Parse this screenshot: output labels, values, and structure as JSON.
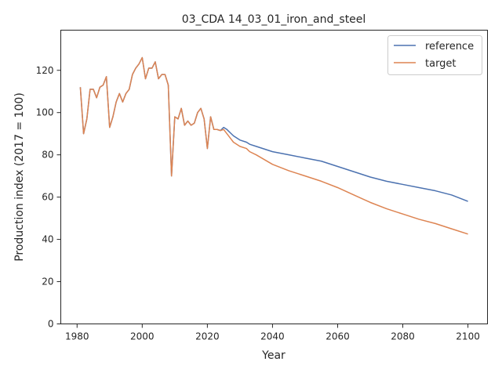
{
  "colors": {
    "reference": "#4c72b0",
    "target": "#dd8452",
    "axis": "#262626",
    "background": "#ffffff"
  },
  "chart_data": {
    "type": "line",
    "title": "03_CDA 14_03_01_iron_and_steel",
    "xlabel": "Year",
    "ylabel": "Production index (2017 = 100)",
    "xlim": [
      1975,
      2106
    ],
    "ylim": [
      0,
      139
    ],
    "xticks": [
      1980,
      2000,
      2020,
      2040,
      2060,
      2080,
      2100
    ],
    "yticks": [
      0,
      20,
      40,
      60,
      80,
      100,
      120
    ],
    "grid": false,
    "legend": {
      "position": "top-right",
      "entries": [
        "reference",
        "target"
      ]
    },
    "series": [
      {
        "name": "reference",
        "color": "#4c72b0",
        "points": [
          [
            1981,
            112
          ],
          [
            1982,
            90
          ],
          [
            1983,
            97
          ],
          [
            1984,
            111
          ],
          [
            1985,
            111
          ],
          [
            1986,
            107
          ],
          [
            1987,
            112
          ],
          [
            1988,
            113
          ],
          [
            1989,
            117
          ],
          [
            1990,
            93
          ],
          [
            1991,
            98
          ],
          [
            1992,
            105
          ],
          [
            1993,
            109
          ],
          [
            1994,
            105
          ],
          [
            1995,
            109
          ],
          [
            1996,
            111
          ],
          [
            1997,
            118
          ],
          [
            1998,
            121
          ],
          [
            1999,
            123
          ],
          [
            2000,
            126
          ],
          [
            2001,
            116
          ],
          [
            2002,
            121
          ],
          [
            2003,
            121
          ],
          [
            2004,
            124
          ],
          [
            2005,
            116
          ],
          [
            2006,
            118
          ],
          [
            2007,
            118
          ],
          [
            2008,
            113
          ],
          [
            2009,
            70
          ],
          [
            2010,
            98
          ],
          [
            2011,
            97
          ],
          [
            2012,
            102
          ],
          [
            2013,
            94
          ],
          [
            2014,
            96
          ],
          [
            2015,
            94
          ],
          [
            2016,
            95
          ],
          [
            2017,
            100
          ],
          [
            2018,
            102
          ],
          [
            2019,
            97
          ],
          [
            2020,
            83
          ],
          [
            2021,
            98
          ],
          [
            2022,
            92
          ],
          [
            2023,
            92
          ],
          [
            2024,
            91.5
          ],
          [
            2025,
            93
          ],
          [
            2026,
            92
          ],
          [
            2027,
            90.5
          ],
          [
            2028,
            89
          ],
          [
            2030,
            87
          ],
          [
            2032,
            86
          ],
          [
            2033,
            85
          ],
          [
            2035,
            84
          ],
          [
            2040,
            81.5
          ],
          [
            2045,
            80
          ],
          [
            2050,
            78.5
          ],
          [
            2055,
            77
          ],
          [
            2060,
            74.5
          ],
          [
            2065,
            72
          ],
          [
            2070,
            69.5
          ],
          [
            2075,
            67.5
          ],
          [
            2080,
            66
          ],
          [
            2085,
            64.5
          ],
          [
            2090,
            63
          ],
          [
            2095,
            61
          ],
          [
            2100,
            58
          ]
        ]
      },
      {
        "name": "target",
        "color": "#dd8452",
        "points": [
          [
            1981,
            112
          ],
          [
            1982,
            90
          ],
          [
            1983,
            97
          ],
          [
            1984,
            111
          ],
          [
            1985,
            111
          ],
          [
            1986,
            107
          ],
          [
            1987,
            112
          ],
          [
            1988,
            113
          ],
          [
            1989,
            117
          ],
          [
            1990,
            93
          ],
          [
            1991,
            98
          ],
          [
            1992,
            105
          ],
          [
            1993,
            109
          ],
          [
            1994,
            105
          ],
          [
            1995,
            109
          ],
          [
            1996,
            111
          ],
          [
            1997,
            118
          ],
          [
            1998,
            121
          ],
          [
            1999,
            123
          ],
          [
            2000,
            126
          ],
          [
            2001,
            116
          ],
          [
            2002,
            121
          ],
          [
            2003,
            121
          ],
          [
            2004,
            124
          ],
          [
            2005,
            116
          ],
          [
            2006,
            118
          ],
          [
            2007,
            118
          ],
          [
            2008,
            113
          ],
          [
            2009,
            70
          ],
          [
            2010,
            98
          ],
          [
            2011,
            97
          ],
          [
            2012,
            102
          ],
          [
            2013,
            94
          ],
          [
            2014,
            96
          ],
          [
            2015,
            94
          ],
          [
            2016,
            95
          ],
          [
            2017,
            100
          ],
          [
            2018,
            102
          ],
          [
            2019,
            97
          ],
          [
            2020,
            83
          ],
          [
            2021,
            98
          ],
          [
            2022,
            92
          ],
          [
            2023,
            92
          ],
          [
            2024,
            91.5
          ],
          [
            2025,
            92
          ],
          [
            2026,
            90
          ],
          [
            2027,
            88
          ],
          [
            2028,
            86
          ],
          [
            2030,
            84
          ],
          [
            2032,
            83
          ],
          [
            2033,
            81.5
          ],
          [
            2035,
            80
          ],
          [
            2040,
            75.5
          ],
          [
            2045,
            72.5
          ],
          [
            2050,
            70
          ],
          [
            2055,
            67.5
          ],
          [
            2060,
            64.5
          ],
          [
            2065,
            61
          ],
          [
            2070,
            57.5
          ],
          [
            2075,
            54.5
          ],
          [
            2080,
            52
          ],
          [
            2085,
            49.5
          ],
          [
            2090,
            47.5
          ],
          [
            2095,
            45
          ],
          [
            2100,
            42.5
          ]
        ]
      }
    ]
  }
}
